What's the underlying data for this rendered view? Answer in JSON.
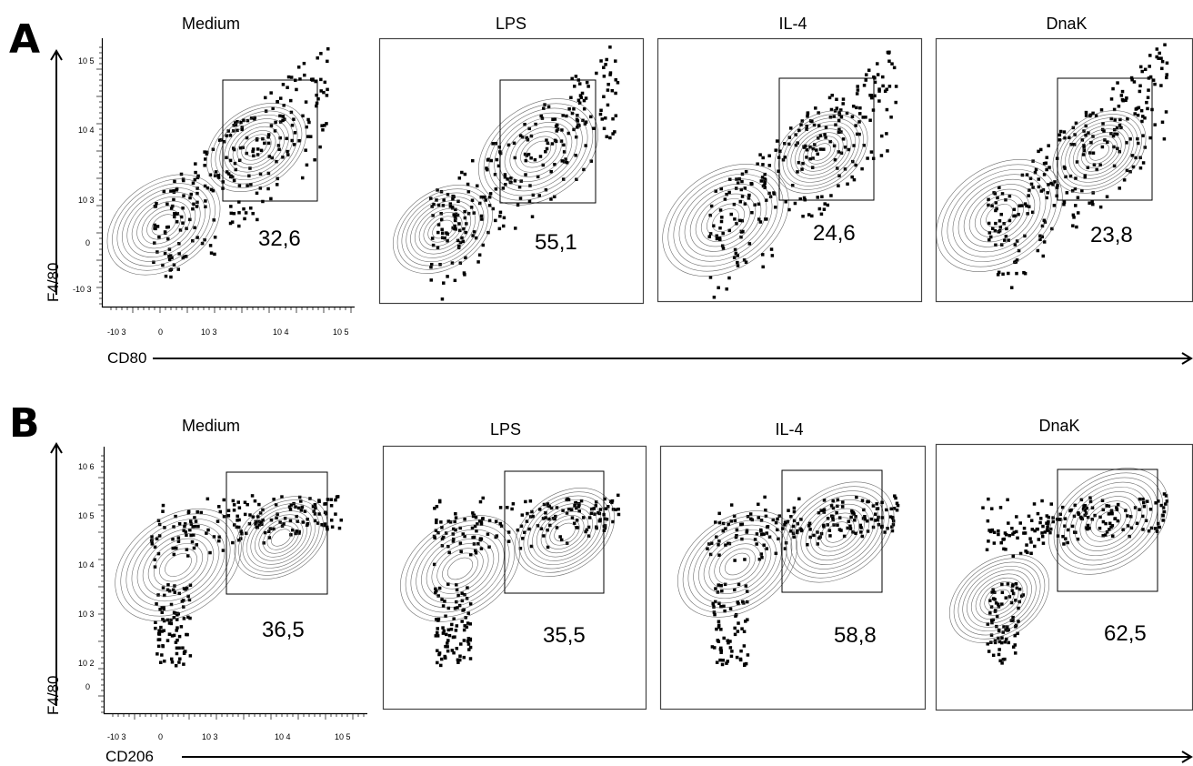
{
  "figure": {
    "rows": [
      {
        "letter": "A",
        "x_axis_label": "CD80",
        "y_axis_label": "F4/80",
        "y_ticks": [
          "10 5",
          "10 4",
          "10 3",
          "0",
          "-10 3"
        ],
        "x_ticks": [
          "-10 3",
          "0",
          "10 3",
          "10 4",
          "10 5"
        ],
        "panels": [
          {
            "title": "Medium",
            "gate_value": "32,6"
          },
          {
            "title": "LPS",
            "gate_value": "55,1"
          },
          {
            "title": "IL-4",
            "gate_value": "24,6"
          },
          {
            "title": "DnaK",
            "gate_value": "23,8"
          }
        ]
      },
      {
        "letter": "B",
        "x_axis_label": "CD206",
        "y_axis_label": "F4/80",
        "y_ticks": [
          "10 6",
          "10 5",
          "10 4",
          "10 3",
          "10 2",
          "0"
        ],
        "x_ticks": [
          "-10 3",
          "0",
          "10 3",
          "10 4",
          "10 5"
        ],
        "panels": [
          {
            "title": "Medium",
            "gate_value": "36,5"
          },
          {
            "title": "LPS",
            "gate_value": "35,5"
          },
          {
            "title": "IL-4",
            "gate_value": "58,8"
          },
          {
            "title": "DnaK",
            "gate_value": "62,5"
          }
        ]
      }
    ]
  },
  "chart_data": [
    {
      "type": "scatter",
      "title": "Medium",
      "xlabel": "CD80",
      "ylabel": "F4/80",
      "xscale": "biexponential",
      "yscale": "biexponential",
      "gate_percent": 32.6
    },
    {
      "type": "scatter",
      "title": "LPS",
      "xlabel": "CD80",
      "ylabel": "F4/80",
      "xscale": "biexponential",
      "yscale": "biexponential",
      "gate_percent": 55.1
    },
    {
      "type": "scatter",
      "title": "IL-4",
      "xlabel": "CD80",
      "ylabel": "F4/80",
      "xscale": "biexponential",
      "yscale": "biexponential",
      "gate_percent": 24.6
    },
    {
      "type": "scatter",
      "title": "DnaK",
      "xlabel": "CD80",
      "ylabel": "F4/80",
      "xscale": "biexponential",
      "yscale": "biexponential",
      "gate_percent": 23.8
    },
    {
      "type": "scatter",
      "title": "Medium",
      "xlabel": "CD206",
      "ylabel": "F4/80",
      "xscale": "biexponential",
      "yscale": "biexponential",
      "gate_percent": 36.5
    },
    {
      "type": "scatter",
      "title": "LPS",
      "xlabel": "CD206",
      "ylabel": "F4/80",
      "xscale": "biexponential",
      "yscale": "biexponential",
      "gate_percent": 35.5
    },
    {
      "type": "scatter",
      "title": "IL-4",
      "xlabel": "CD206",
      "ylabel": "F4/80",
      "xscale": "biexponential",
      "yscale": "biexponential",
      "gate_percent": 58.8
    },
    {
      "type": "scatter",
      "title": "DnaK",
      "xlabel": "CD206",
      "ylabel": "F4/80",
      "xscale": "biexponential",
      "yscale": "biexponential",
      "gate_percent": 62.5
    }
  ]
}
